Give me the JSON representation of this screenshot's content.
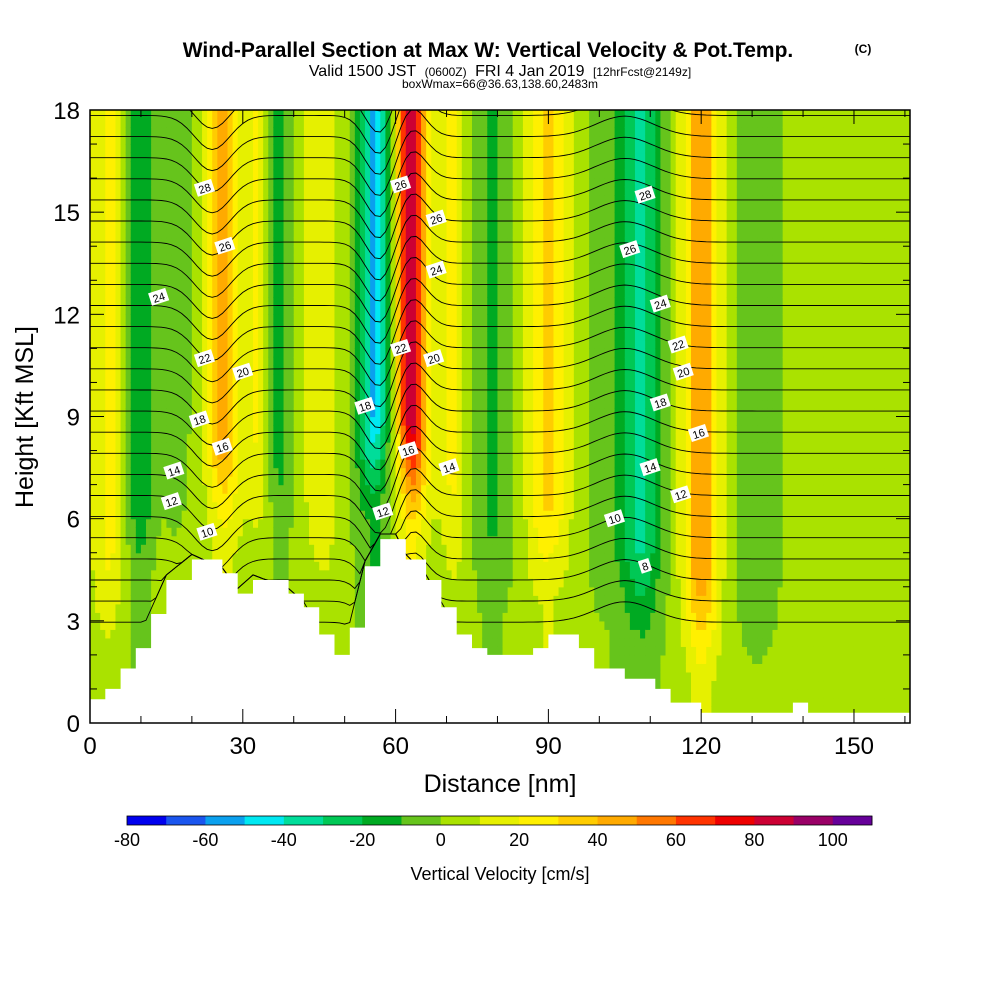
{
  "header": {
    "title": "Wind-Parallel Section at Max W: Vertical Velocity & Pot.Temp.",
    "copyright": "(C)",
    "valid_prefix": "Valid 1500 JST",
    "valid_utc": "(0600Z)",
    "valid_date": "FRI 4 Jan 2019",
    "forecast": "[12hrFcst@2149z]",
    "box_info": "boxWmax=66@36.63,138.60,2483m"
  },
  "chart_data": {
    "type": "heatmap",
    "xlabel": "Distance [nm]",
    "ylabel": "Height [Kft MSL]",
    "xlim": [
      0,
      161
    ],
    "ylim": [
      0,
      18
    ],
    "x_ticks": [
      "0",
      "30",
      "60",
      "90",
      "120",
      "150"
    ],
    "y_ticks": [
      "0",
      "3",
      "6",
      "9",
      "12",
      "15",
      "18"
    ],
    "colorbar": {
      "label": "Vertical Velocity [cm/s]",
      "ticks": [
        "-80",
        "-60",
        "-40",
        "-20",
        "0",
        "20",
        "40",
        "60",
        "80",
        "100"
      ],
      "levels": [
        -80,
        -70,
        -60,
        -50,
        -40,
        -30,
        -20,
        -10,
        0,
        10,
        20,
        30,
        40,
        50,
        60,
        70,
        80,
        90,
        100,
        110
      ],
      "colors": [
        "#0000ee",
        "#1a55ee",
        "#0aa0ee",
        "#00e8f2",
        "#00dd9a",
        "#00c855",
        "#00aa22",
        "#66c41c",
        "#aae200",
        "#e6f000",
        "#fff000",
        "#ffcc00",
        "#ffaa00",
        "#ff7700",
        "#ff3300",
        "#ee0000",
        "#cc0033",
        "#990066",
        "#660099"
      ]
    },
    "w_columns": [
      {
        "x": 4,
        "w": 20,
        "sigma": 3.5
      },
      {
        "x": 10,
        "w": -22,
        "sigma": 3
      },
      {
        "x": 17,
        "w": -10,
        "sigma": 2.5
      },
      {
        "x": 26,
        "w": 45,
        "sigma": 3
      },
      {
        "x": 33,
        "w": 18,
        "sigma": 3
      },
      {
        "x": 37,
        "w": -20,
        "sigma": 2.5
      },
      {
        "x": 45,
        "w": 15,
        "sigma": 3.5
      },
      {
        "x": 56,
        "w": -55,
        "sigma": 3
      },
      {
        "x": 63,
        "w": 80,
        "sigma": 3
      },
      {
        "x": 71,
        "w": 18,
        "sigma": 3
      },
      {
        "x": 79,
        "w": -15,
        "sigma": 4
      },
      {
        "x": 90,
        "w": 30,
        "sigma": 4
      },
      {
        "x": 101,
        "w": -8,
        "sigma": 4
      },
      {
        "x": 108,
        "w": -35,
        "sigma": 4
      },
      {
        "x": 120,
        "w": 45,
        "sigma": 3.5
      },
      {
        "x": 131,
        "w": -8,
        "sigma": 5
      },
      {
        "x": 150,
        "w": 5,
        "sigma": 8
      }
    ],
    "terrain_kft": [
      [
        0,
        0.7
      ],
      [
        3,
        1.0
      ],
      [
        6,
        1.6
      ],
      [
        9,
        2.2
      ],
      [
        12,
        3.2
      ],
      [
        15,
        4.2
      ],
      [
        20,
        4.8
      ],
      [
        26,
        4.4
      ],
      [
        29,
        3.8
      ],
      [
        32,
        4.2
      ],
      [
        39,
        3.8
      ],
      [
        42,
        3.4
      ],
      [
        45,
        2.6
      ],
      [
        48,
        2.0
      ],
      [
        51,
        2.8
      ],
      [
        54,
        4.6
      ],
      [
        57,
        5.4
      ],
      [
        60,
        5.4
      ],
      [
        62,
        4.8
      ],
      [
        66,
        4.2
      ],
      [
        69,
        3.4
      ],
      [
        72,
        2.6
      ],
      [
        75,
        2.2
      ],
      [
        78,
        2.0
      ],
      [
        84,
        2.0
      ],
      [
        87,
        2.2
      ],
      [
        90,
        2.6
      ],
      [
        93,
        2.6
      ],
      [
        96,
        2.2
      ],
      [
        99,
        1.6
      ],
      [
        105,
        1.3
      ],
      [
        111,
        1.0
      ],
      [
        114,
        0.6
      ],
      [
        120,
        0.3
      ],
      [
        135,
        0.3
      ],
      [
        138,
        0.6
      ],
      [
        141,
        0.3
      ],
      [
        159,
        0.3
      ],
      [
        161,
        0.3
      ]
    ],
    "theta_labels": [
      {
        "text": "28",
        "x": 22.5,
        "y": 15.7
      },
      {
        "text": "26",
        "x": 26.5,
        "y": 14.0
      },
      {
        "text": "24",
        "x": 13.5,
        "y": 12.5
      },
      {
        "text": "22",
        "x": 22.5,
        "y": 10.7
      },
      {
        "text": "20",
        "x": 30.0,
        "y": 10.3
      },
      {
        "text": "18",
        "x": 21.5,
        "y": 8.9
      },
      {
        "text": "16",
        "x": 26.0,
        "y": 8.1
      },
      {
        "text": "14",
        "x": 16.5,
        "y": 7.4
      },
      {
        "text": "12",
        "x": 16.0,
        "y": 6.5
      },
      {
        "text": "10",
        "x": 23.0,
        "y": 5.6
      },
      {
        "text": "26",
        "x": 61.0,
        "y": 15.8
      },
      {
        "text": "26",
        "x": 68.0,
        "y": 14.8
      },
      {
        "text": "24",
        "x": 68.0,
        "y": 13.3
      },
      {
        "text": "22",
        "x": 61.0,
        "y": 11.0
      },
      {
        "text": "20",
        "x": 67.5,
        "y": 10.7
      },
      {
        "text": "18",
        "x": 54.0,
        "y": 9.3
      },
      {
        "text": "16",
        "x": 62.5,
        "y": 8.0
      },
      {
        "text": "14",
        "x": 70.5,
        "y": 7.5
      },
      {
        "text": "12",
        "x": 57.5,
        "y": 6.2
      },
      {
        "text": "28",
        "x": 109.0,
        "y": 15.5
      },
      {
        "text": "26",
        "x": 106.0,
        "y": 13.9
      },
      {
        "text": "24",
        "x": 112.0,
        "y": 12.3
      },
      {
        "text": "22",
        "x": 115.5,
        "y": 11.1
      },
      {
        "text": "20",
        "x": 116.5,
        "y": 10.3
      },
      {
        "text": "18",
        "x": 112.0,
        "y": 9.4
      },
      {
        "text": "16",
        "x": 119.5,
        "y": 8.5
      },
      {
        "text": "14",
        "x": 110.0,
        "y": 7.5
      },
      {
        "text": "12",
        "x": 116.0,
        "y": 6.7
      },
      {
        "text": "10",
        "x": 103.0,
        "y": 6.0
      },
      {
        "text": "8",
        "x": 109.0,
        "y": 4.6
      }
    ]
  }
}
